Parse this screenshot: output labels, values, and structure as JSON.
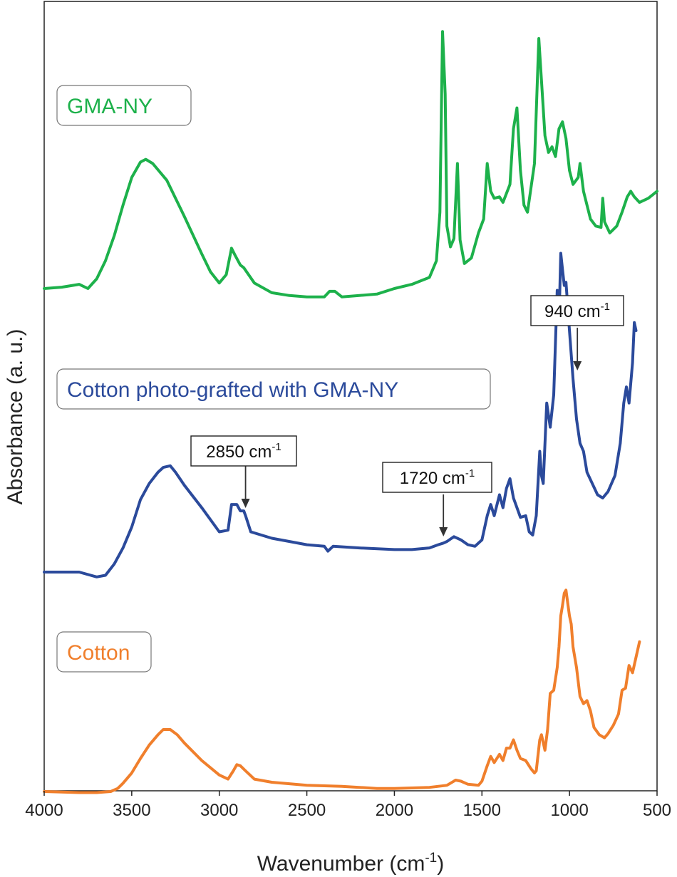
{
  "chart_data": {
    "type": "line",
    "title": "",
    "xlabel": "Wavenumber (cm",
    "xlabel_sup": "-1",
    "xlabel_close": ")",
    "ylabel": "Absorbance (a. u.)",
    "xlim": [
      4000,
      500
    ],
    "x_reversed": true,
    "x_ticks": [
      4000,
      3500,
      3000,
      2500,
      2000,
      1500,
      1000,
      500
    ],
    "y_ticks_shown": false,
    "grid": false,
    "series": [
      {
        "name": "GMA-NY",
        "color": "#1db14b",
        "points": [
          [
            4000,
            0.0
          ],
          [
            3900,
            0.01
          ],
          [
            3800,
            0.03
          ],
          [
            3750,
            0.0
          ],
          [
            3700,
            0.07
          ],
          [
            3650,
            0.2
          ],
          [
            3600,
            0.38
          ],
          [
            3550,
            0.6
          ],
          [
            3500,
            0.8
          ],
          [
            3450,
            0.91
          ],
          [
            3420,
            0.93
          ],
          [
            3380,
            0.9
          ],
          [
            3300,
            0.78
          ],
          [
            3200,
            0.52
          ],
          [
            3100,
            0.25
          ],
          [
            3050,
            0.12
          ],
          [
            3000,
            0.04
          ],
          [
            2960,
            0.1
          ],
          [
            2930,
            0.29
          ],
          [
            2910,
            0.24
          ],
          [
            2880,
            0.17
          ],
          [
            2860,
            0.15
          ],
          [
            2800,
            0.04
          ],
          [
            2700,
            -0.03
          ],
          [
            2600,
            -0.05
          ],
          [
            2500,
            -0.06
          ],
          [
            2400,
            -0.06
          ],
          [
            2370,
            -0.02
          ],
          [
            2340,
            -0.02
          ],
          [
            2300,
            -0.06
          ],
          [
            2100,
            -0.04
          ],
          [
            2000,
            0.0
          ],
          [
            1900,
            0.03
          ],
          [
            1800,
            0.08
          ],
          [
            1760,
            0.2
          ],
          [
            1740,
            0.55
          ],
          [
            1725,
            1.85
          ],
          [
            1710,
            1.4
          ],
          [
            1700,
            0.45
          ],
          [
            1680,
            0.3
          ],
          [
            1660,
            0.36
          ],
          [
            1640,
            0.9
          ],
          [
            1625,
            0.35
          ],
          [
            1600,
            0.18
          ],
          [
            1560,
            0.22
          ],
          [
            1520,
            0.4
          ],
          [
            1490,
            0.5
          ],
          [
            1470,
            0.9
          ],
          [
            1450,
            0.7
          ],
          [
            1430,
            0.65
          ],
          [
            1400,
            0.66
          ],
          [
            1380,
            0.62
          ],
          [
            1340,
            0.75
          ],
          [
            1320,
            1.15
          ],
          [
            1300,
            1.3
          ],
          [
            1280,
            0.85
          ],
          [
            1260,
            0.6
          ],
          [
            1240,
            0.55
          ],
          [
            1200,
            0.9
          ],
          [
            1175,
            1.8
          ],
          [
            1160,
            1.5
          ],
          [
            1140,
            1.1
          ],
          [
            1120,
            0.98
          ],
          [
            1100,
            1.02
          ],
          [
            1080,
            0.95
          ],
          [
            1060,
            1.15
          ],
          [
            1040,
            1.2
          ],
          [
            1020,
            1.08
          ],
          [
            1000,
            0.85
          ],
          [
            980,
            0.75
          ],
          [
            950,
            0.8
          ],
          [
            940,
            0.9
          ],
          [
            920,
            0.7
          ],
          [
            900,
            0.6
          ],
          [
            880,
            0.5
          ],
          [
            850,
            0.45
          ],
          [
            820,
            0.44
          ],
          [
            810,
            0.65
          ],
          [
            800,
            0.48
          ],
          [
            770,
            0.4
          ],
          [
            730,
            0.45
          ],
          [
            700,
            0.55
          ],
          [
            670,
            0.66
          ],
          [
            650,
            0.7
          ],
          [
            630,
            0.66
          ],
          [
            600,
            0.62
          ],
          [
            550,
            0.65
          ],
          [
            520,
            0.68
          ],
          [
            500,
            0.7
          ]
        ]
      },
      {
        "name": "Cotton photo-grafted with GMA-NY",
        "color": "#2b4a9b",
        "points": [
          [
            4000,
            0.0
          ],
          [
            3800,
            0.0
          ],
          [
            3700,
            -0.03
          ],
          [
            3650,
            -0.02
          ],
          [
            3600,
            0.05
          ],
          [
            3550,
            0.15
          ],
          [
            3500,
            0.28
          ],
          [
            3450,
            0.45
          ],
          [
            3400,
            0.55
          ],
          [
            3350,
            0.62
          ],
          [
            3320,
            0.65
          ],
          [
            3280,
            0.66
          ],
          [
            3250,
            0.62
          ],
          [
            3200,
            0.54
          ],
          [
            3100,
            0.4
          ],
          [
            3000,
            0.25
          ],
          [
            2950,
            0.26
          ],
          [
            2930,
            0.42
          ],
          [
            2900,
            0.42
          ],
          [
            2880,
            0.38
          ],
          [
            2860,
            0.38
          ],
          [
            2850,
            0.35
          ],
          [
            2820,
            0.25
          ],
          [
            2700,
            0.21
          ],
          [
            2500,
            0.17
          ],
          [
            2400,
            0.16
          ],
          [
            2380,
            0.13
          ],
          [
            2350,
            0.16
          ],
          [
            2200,
            0.15
          ],
          [
            2000,
            0.14
          ],
          [
            1900,
            0.14
          ],
          [
            1800,
            0.15
          ],
          [
            1750,
            0.17
          ],
          [
            1720,
            0.18
          ],
          [
            1700,
            0.19
          ],
          [
            1660,
            0.22
          ],
          [
            1620,
            0.2
          ],
          [
            1580,
            0.17
          ],
          [
            1540,
            0.16
          ],
          [
            1500,
            0.2
          ],
          [
            1470,
            0.35
          ],
          [
            1450,
            0.42
          ],
          [
            1430,
            0.35
          ],
          [
            1400,
            0.48
          ],
          [
            1380,
            0.4
          ],
          [
            1360,
            0.52
          ],
          [
            1340,
            0.58
          ],
          [
            1320,
            0.46
          ],
          [
            1300,
            0.4
          ],
          [
            1280,
            0.34
          ],
          [
            1250,
            0.35
          ],
          [
            1230,
            0.25
          ],
          [
            1210,
            0.23
          ],
          [
            1190,
            0.35
          ],
          [
            1170,
            0.75
          ],
          [
            1160,
            0.6
          ],
          [
            1150,
            0.55
          ],
          [
            1130,
            1.05
          ],
          [
            1110,
            0.9
          ],
          [
            1090,
            1.1
          ],
          [
            1070,
            1.75
          ],
          [
            1060,
            1.55
          ],
          [
            1050,
            1.98
          ],
          [
            1040,
            1.88
          ],
          [
            1030,
            1.78
          ],
          [
            1020,
            1.8
          ],
          [
            1000,
            1.5
          ],
          [
            980,
            1.2
          ],
          [
            960,
            0.95
          ],
          [
            940,
            0.8
          ],
          [
            920,
            0.75
          ],
          [
            900,
            0.62
          ],
          [
            870,
            0.55
          ],
          [
            840,
            0.48
          ],
          [
            810,
            0.46
          ],
          [
            780,
            0.5
          ],
          [
            740,
            0.6
          ],
          [
            710,
            0.8
          ],
          [
            690,
            1.05
          ],
          [
            675,
            1.15
          ],
          [
            660,
            1.05
          ],
          [
            640,
            1.3
          ],
          [
            630,
            1.55
          ],
          [
            620,
            1.5
          ]
        ]
      },
      {
        "name": "Cotton",
        "color": "#f07f2c",
        "points": [
          [
            4000,
            0.0
          ],
          [
            3800,
            -0.01
          ],
          [
            3700,
            -0.01
          ],
          [
            3620,
            0.0
          ],
          [
            3580,
            0.03
          ],
          [
            3550,
            0.08
          ],
          [
            3500,
            0.18
          ],
          [
            3450,
            0.32
          ],
          [
            3400,
            0.45
          ],
          [
            3350,
            0.55
          ],
          [
            3320,
            0.6
          ],
          [
            3280,
            0.6
          ],
          [
            3240,
            0.55
          ],
          [
            3200,
            0.47
          ],
          [
            3100,
            0.3
          ],
          [
            3000,
            0.16
          ],
          [
            2950,
            0.12
          ],
          [
            2920,
            0.2
          ],
          [
            2900,
            0.26
          ],
          [
            2880,
            0.25
          ],
          [
            2850,
            0.2
          ],
          [
            2800,
            0.12
          ],
          [
            2700,
            0.09
          ],
          [
            2500,
            0.06
          ],
          [
            2300,
            0.05
          ],
          [
            2200,
            0.04
          ],
          [
            2100,
            0.03
          ],
          [
            2000,
            0.03
          ],
          [
            1800,
            0.04
          ],
          [
            1700,
            0.06
          ],
          [
            1650,
            0.11
          ],
          [
            1620,
            0.1
          ],
          [
            1580,
            0.07
          ],
          [
            1520,
            0.06
          ],
          [
            1500,
            0.1
          ],
          [
            1470,
            0.25
          ],
          [
            1450,
            0.34
          ],
          [
            1430,
            0.28
          ],
          [
            1400,
            0.36
          ],
          [
            1380,
            0.3
          ],
          [
            1360,
            0.42
          ],
          [
            1340,
            0.42
          ],
          [
            1320,
            0.5
          ],
          [
            1300,
            0.4
          ],
          [
            1280,
            0.32
          ],
          [
            1250,
            0.3
          ],
          [
            1220,
            0.22
          ],
          [
            1200,
            0.18
          ],
          [
            1190,
            0.2
          ],
          [
            1170,
            0.5
          ],
          [
            1160,
            0.55
          ],
          [
            1140,
            0.4
          ],
          [
            1125,
            0.6
          ],
          [
            1110,
            0.95
          ],
          [
            1090,
            0.98
          ],
          [
            1070,
            1.2
          ],
          [
            1060,
            1.4
          ],
          [
            1050,
            1.7
          ],
          [
            1040,
            1.8
          ],
          [
            1030,
            1.92
          ],
          [
            1020,
            1.95
          ],
          [
            1000,
            1.7
          ],
          [
            990,
            1.62
          ],
          [
            980,
            1.4
          ],
          [
            960,
            1.2
          ],
          [
            940,
            0.92
          ],
          [
            920,
            0.85
          ],
          [
            900,
            0.88
          ],
          [
            880,
            0.78
          ],
          [
            860,
            0.62
          ],
          [
            830,
            0.55
          ],
          [
            800,
            0.52
          ],
          [
            780,
            0.56
          ],
          [
            750,
            0.64
          ],
          [
            720,
            0.75
          ],
          [
            700,
            0.98
          ],
          [
            680,
            1.0
          ],
          [
            660,
            1.22
          ],
          [
            640,
            1.15
          ],
          [
            620,
            1.3
          ],
          [
            600,
            1.45
          ]
        ]
      }
    ],
    "legend_labels": [
      {
        "text": "GMA-NY",
        "color": "#1db14b"
      },
      {
        "text": "Cotton photo-grafted with GMA-NY",
        "color": "#2b4a9b"
      },
      {
        "text": "Cotton",
        "color": "#f07f2c"
      }
    ],
    "annotations": [
      {
        "label": "2850 cm",
        "sup": "-1",
        "x": 2850,
        "series": 1
      },
      {
        "label": "1720 cm",
        "sup": "-1",
        "x": 1720,
        "series": 1
      },
      {
        "label": "940 cm",
        "sup": "-1",
        "x": 940,
        "series": 1
      }
    ]
  }
}
